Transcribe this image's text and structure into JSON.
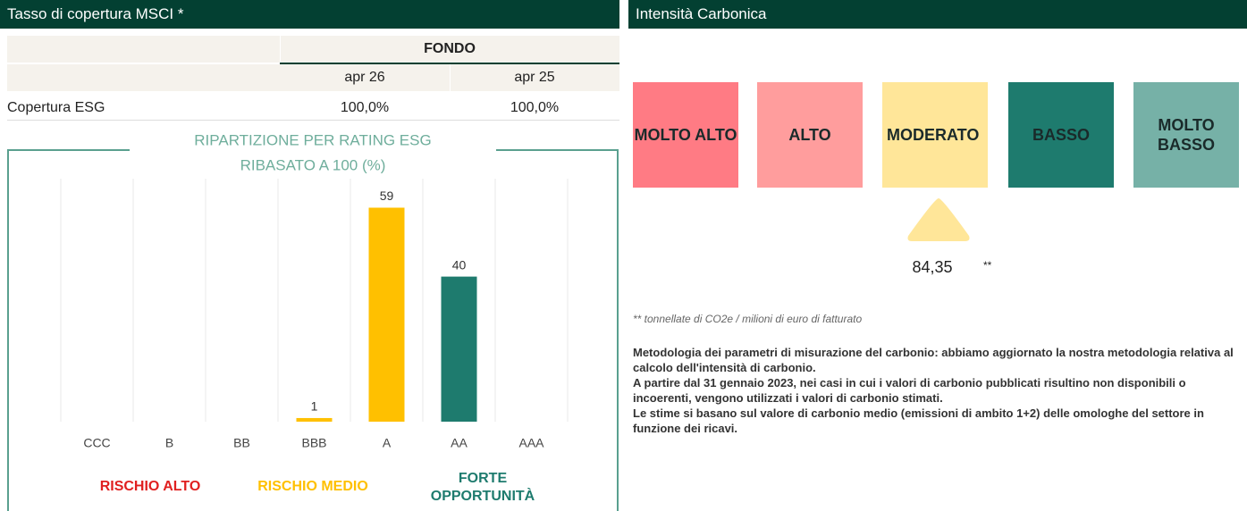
{
  "left_panel": {
    "title": "Tasso di copertura MSCI *",
    "table": {
      "group_header": "FONDO",
      "columns": [
        "apr 26",
        "apr 25"
      ],
      "rows": [
        [
          "Copertura ESG",
          "100,0%",
          "100,0%"
        ]
      ]
    }
  },
  "chart_data": {
    "type": "bar",
    "title": "RIPARTIZIONE PER RATING ESG",
    "subtitle": "RIBASATO A 100 (%)",
    "categories": [
      "CCC",
      "B",
      "BB",
      "BBB",
      "A",
      "AA",
      "AAA"
    ],
    "values": [
      null,
      null,
      null,
      1,
      59,
      40,
      null
    ],
    "colors": [
      "#e02020",
      "#e02020",
      "#e02020",
      "#ffc000",
      "#ffc000",
      "#1e7b6e",
      "#1e7b6e"
    ],
    "ylim": [
      0,
      67
    ],
    "grid": true,
    "groups": [
      {
        "label": "RISCHIO ALTO",
        "color": "#e02020"
      },
      {
        "label": "RISCHIO MEDIO",
        "color": "#ffc000"
      },
      {
        "label": "FORTE OPPORTUNITÀ",
        "color": "#1e7b6e"
      }
    ]
  },
  "carbon": {
    "title": "Intensità Carbonica",
    "levels": [
      {
        "label": "MOLTO ALTO",
        "color": "#ff7b84"
      },
      {
        "label": "ALTO",
        "color": "#ff9d9d"
      },
      {
        "label": "MODERATO",
        "color": "#ffe699"
      },
      {
        "label": "BASSO",
        "color": "#1e7b6e"
      },
      {
        "label": "MOLTO BASSO",
        "color": "#76b1a7"
      }
    ],
    "value": "84,35",
    "value_note": "**",
    "footnote": "** tonnellate di CO2e / milioni di euro di fatturato",
    "methodology": [
      "Metodologia dei parametri di misurazione del carbonio: abbiamo aggiornato la nostra metodologia relativa al calcolo dell'intensità di carbonio.",
      "A partire dal 31 gennaio 2023, nei casi in cui i valori di carbonio pubblicati risultino non disponibili o incoerenti, vengono utilizzati i valori di carbonio stimati.",
      "Le stime si basano sul valore di carbonio medio (emissioni di ambito 1+2) delle omologhe del settore in funzione dei ricavi."
    ]
  }
}
